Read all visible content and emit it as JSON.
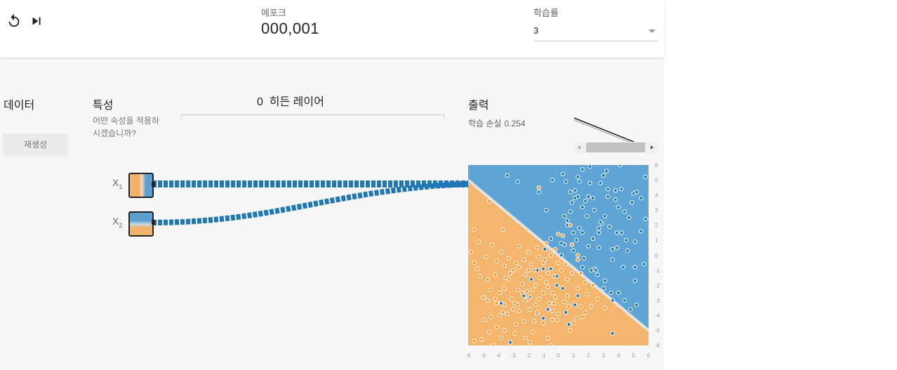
{
  "controls": {
    "reset_icon": "reset-icon",
    "step_icon": "step-forward-icon"
  },
  "epoch": {
    "label": "에포크",
    "value": "000,001"
  },
  "learning_rate": {
    "label": "학습률",
    "value": "3"
  },
  "data_section": {
    "title": "데이터",
    "regenerate_label": "재생성"
  },
  "features_section": {
    "title": "특성",
    "description": "어떤 속성을 적용하시겠습니까?",
    "features": [
      {
        "name": "X",
        "sub": "1"
      },
      {
        "name": "X",
        "sub": "2"
      }
    ]
  },
  "hidden_section": {
    "count": "0",
    "label": "히든 레이어"
  },
  "output_section": {
    "title": "출력",
    "loss_label": "학습 손실",
    "loss_value": "0.254"
  },
  "colors": {
    "blue": "#1f77b4",
    "orange": "#f29b38",
    "blue_region": "#5ea5d5",
    "orange_region": "#f4b56c",
    "background": "#f7f7f7"
  },
  "chart_data": {
    "type": "scatter",
    "x_ticks": [
      "-6",
      "-5",
      "-4",
      "-3",
      "-2",
      "-1",
      "0",
      "1",
      "2",
      "3",
      "4",
      "5",
      "6"
    ],
    "y_ticks": [
      "6",
      "5",
      "4",
      "3",
      "2",
      "1",
      "0",
      "-1",
      "-2",
      "-3",
      "-4",
      "-5",
      "-6"
    ],
    "xlim": [
      -6,
      6
    ],
    "ylim": [
      -6,
      6
    ],
    "decision_boundary": {
      "from": [
        -6,
        5
      ],
      "to": [
        6,
        -5
      ]
    },
    "series": [
      {
        "class": "blue",
        "points": [
          [
            2.9,
            2.1
          ],
          [
            3.0,
            5.3
          ],
          [
            5.2,
            4.2
          ],
          [
            2.8,
            4.8
          ],
          [
            5.5,
            3.8
          ],
          [
            0.3,
            5.4
          ],
          [
            3.8,
            4.3
          ],
          [
            0.6,
            2.3
          ],
          [
            2.1,
            5.9
          ],
          [
            3.3,
            3.9
          ],
          [
            4.5,
            1.0
          ],
          [
            2.8,
            2.2
          ],
          [
            4.9,
            3.5
          ],
          [
            5.8,
            2.4
          ],
          [
            1.3,
            5.2
          ],
          [
            3.3,
            4.4
          ],
          [
            1.8,
            3.6
          ],
          [
            2.7,
            1.5
          ],
          [
            0.9,
            3.5
          ],
          [
            2.3,
            3.8
          ],
          [
            4.7,
            2.5
          ],
          [
            2.7,
            1.8
          ],
          [
            2.1,
            4.8
          ],
          [
            0.4,
            2.6
          ],
          [
            2.0,
            3.9
          ],
          [
            3.1,
            2.6
          ],
          [
            5.1,
            0.9
          ],
          [
            1.3,
            3.9
          ],
          [
            4.2,
            4.4
          ],
          [
            5.0,
            4.1
          ],
          [
            3.9,
            1.5
          ],
          [
            1.6,
            3.2
          ],
          [
            3.6,
            0.4
          ],
          [
            1.4,
            1.8
          ],
          [
            1.1,
            3.8
          ],
          [
            0.5,
            4.9
          ],
          [
            3.2,
            5.6
          ],
          [
            2.7,
            0.5
          ],
          [
            4.0,
            3.2
          ],
          [
            2.3,
            1.1
          ],
          [
            4.4,
            2.9
          ],
          [
            4.6,
            0.3
          ],
          [
            4.2,
            1.5
          ],
          [
            2.4,
            3.0
          ],
          [
            5.1,
            -0.8
          ],
          [
            3.8,
            3.7
          ],
          [
            1.0,
            1.5
          ],
          [
            0.8,
            4.2
          ],
          [
            3.4,
            1.9
          ],
          [
            3.6,
            -0.3
          ],
          [
            2.0,
            0.6
          ],
          [
            0.8,
            2.9
          ],
          [
            1.1,
            4.3
          ],
          [
            1.9,
            2.6
          ],
          [
            3.9,
            0.5
          ],
          [
            1.7,
            -0.2
          ],
          [
            2.4,
            -0.9
          ],
          [
            2.2,
            -1.0
          ],
          [
            3.1,
            -1.7
          ],
          [
            3.5,
            -2.5
          ],
          [
            5.2,
            -3.3
          ],
          [
            4.3,
            -0.8
          ],
          [
            4.8,
            -3.6
          ],
          [
            1.2,
            1.0
          ],
          [
            0.6,
            2.0
          ],
          [
            1.6,
            1.5
          ],
          [
            0.4,
            0.7
          ],
          [
            1.0,
            0.3
          ],
          [
            1.6,
            -0.8
          ],
          [
            2.5,
            -1.0
          ],
          [
            2.6,
            -1.3
          ],
          [
            3.0,
            -2.2
          ],
          [
            3.6,
            -3.0
          ],
          [
            4.0,
            -2.5
          ],
          [
            4.4,
            -3.0
          ],
          [
            5.1,
            -1.7
          ],
          [
            5.7,
            -0.6
          ],
          [
            -0.5,
            -0.9
          ],
          [
            0.2,
            0.0
          ],
          [
            -1.0,
            -0.9
          ],
          [
            -1.4,
            -1.0
          ],
          [
            -1.8,
            -1.6
          ],
          [
            -1.9,
            -2.8
          ],
          [
            -0.1,
            -1.4
          ],
          [
            1.1,
            -3.3
          ],
          [
            1.3,
            -2.7
          ],
          [
            -0.7,
            -3.6
          ],
          [
            0.5,
            -3.8
          ],
          [
            0.7,
            -4.6
          ],
          [
            -2.3,
            -2.7
          ],
          [
            -0.9,
            0.4
          ],
          [
            0.3,
            -2.2
          ],
          [
            -1.0,
            -4.2
          ],
          [
            3.6,
            -5.2
          ],
          [
            -3.2,
            -5.8
          ],
          [
            -3.8,
            -3.2
          ],
          [
            -1.4,
            -3.9
          ],
          [
            -0.1,
            -2.0
          ],
          [
            -0.5,
            1.1
          ],
          [
            5.8,
            5.2
          ],
          [
            4.1,
            6.0
          ],
          [
            1.6,
            5.7
          ],
          [
            1.4,
            4.9
          ],
          [
            5.5,
            1.6
          ],
          [
            0.2,
            0.8
          ],
          [
            -1.3,
            4.2
          ],
          [
            -0.8,
            3.0
          ],
          [
            -0.4,
            5.0
          ],
          [
            -3.4,
            5.3
          ],
          [
            -2.7,
            4.9
          ]
        ]
      },
      {
        "class": "orange",
        "points": [
          [
            -1.3,
            4.5
          ],
          [
            0.8,
            2.0
          ],
          [
            1.3,
            -0.3
          ],
          [
            -0.2,
            0.4
          ],
          [
            1.3,
            -2.2
          ],
          [
            -0.4,
            -2.5
          ],
          [
            -3.7,
            1.7
          ],
          [
            -4.9,
            -4.3
          ],
          [
            -5.6,
            1.7
          ],
          [
            -5.3,
            0.9
          ],
          [
            -4.6,
            3.6
          ],
          [
            -4.1,
            -0.4
          ],
          [
            -4.7,
            -1.6
          ],
          [
            -3.3,
            -1.6
          ],
          [
            -2.2,
            -1.3
          ],
          [
            -1.6,
            -1.0
          ],
          [
            -1.0,
            -0.5
          ],
          [
            -2.7,
            -2.3
          ],
          [
            -2.1,
            -2.4
          ],
          [
            -3.6,
            -2.2
          ],
          [
            -4.7,
            -3.0
          ],
          [
            -4.1,
            -3.2
          ],
          [
            -3.9,
            -4.0
          ],
          [
            -2.9,
            -3.2
          ],
          [
            -2.2,
            -3.0
          ],
          [
            -0.7,
            -2.1
          ],
          [
            -0.2,
            -2.8
          ],
          [
            -0.4,
            -3.7
          ],
          [
            -1.6,
            -4.4
          ],
          [
            -1.7,
            -5.1
          ],
          [
            -2.2,
            -5.5
          ],
          [
            -4.3,
            -6.0
          ],
          [
            -5.1,
            -5.6
          ],
          [
            -3.6,
            -5.0
          ],
          [
            -2.3,
            -4.4
          ],
          [
            -0.7,
            -5.5
          ],
          [
            -0.4,
            -4.3
          ],
          [
            1.0,
            -4.5
          ],
          [
            0.8,
            -5.0
          ],
          [
            2.2,
            -3.4
          ],
          [
            2.6,
            -2.9
          ],
          [
            3.1,
            -3.5
          ],
          [
            1.6,
            -4.1
          ],
          [
            0.4,
            -3.1
          ],
          [
            -0.3,
            -3.2
          ],
          [
            -1.7,
            -2.3
          ],
          [
            -2.0,
            -1.0
          ],
          [
            -2.6,
            -0.8
          ],
          [
            -1.4,
            0.5
          ],
          [
            -0.5,
            0.0
          ],
          [
            0.0,
            -0.5
          ],
          [
            -0.8,
            0.8
          ],
          [
            -0.9,
            -0.3
          ],
          [
            -1.3,
            -0.1
          ],
          [
            -2.0,
            0.2
          ],
          [
            -2.3,
            -0.3
          ],
          [
            -2.8,
            -0.5
          ],
          [
            -3.2,
            -1.2
          ],
          [
            -3.5,
            -1.5
          ],
          [
            -3.9,
            -2.5
          ],
          [
            -4.2,
            -2.9
          ],
          [
            -3.6,
            -3.3
          ],
          [
            -3.0,
            -3.6
          ],
          [
            -2.6,
            -3.7
          ],
          [
            -1.9,
            -3.6
          ],
          [
            -1.3,
            -2.9
          ],
          [
            -1.0,
            -2.5
          ],
          [
            -0.8,
            -1.8
          ],
          [
            0.2,
            -1.0
          ],
          [
            0.6,
            -1.6
          ],
          [
            1.5,
            -1.2
          ],
          [
            2.3,
            -2.0
          ],
          [
            1.8,
            -1.8
          ],
          [
            0.9,
            -1.2
          ],
          [
            1.5,
            -3.4
          ],
          [
            1.8,
            -3.8
          ],
          [
            -0.1,
            -4.3
          ],
          [
            -1.0,
            -4.5
          ],
          [
            -1.5,
            -3.3
          ],
          [
            -2.4,
            -2.5
          ],
          [
            -3.1,
            -2.9
          ],
          [
            -3.4,
            -3.9
          ],
          [
            -2.8,
            -4.6
          ],
          [
            -4.1,
            -4.8
          ],
          [
            -4.5,
            -4.1
          ],
          [
            -5.0,
            -2.8
          ],
          [
            -5.2,
            -1.4
          ],
          [
            -5.6,
            -0.5
          ],
          [
            -5.8,
            0.2
          ],
          [
            -5.4,
            -0.9
          ],
          [
            -4.8,
            -0.1
          ],
          [
            -4.4,
            0.7
          ],
          [
            -3.8,
            0.2
          ],
          [
            -3.3,
            -0.2
          ],
          [
            -2.6,
            0.6
          ],
          [
            -1.8,
            -0.6
          ],
          [
            -1.2,
            -1.5
          ],
          [
            -0.7,
            -1.2
          ],
          [
            0.3,
            1.3
          ],
          [
            0.0,
            1.4
          ],
          [
            0.9,
            0.7
          ],
          [
            1.3,
            0.0
          ],
          [
            0.5,
            -0.6
          ],
          [
            1.9,
            -2.6
          ],
          [
            0.6,
            -2.7
          ],
          [
            -0.3,
            -1.4
          ],
          [
            -1.5,
            -2.0
          ],
          [
            -2.4,
            -1.9
          ],
          [
            -3.0,
            -1.0
          ],
          [
            -3.6,
            -0.7
          ],
          [
            -4.2,
            -1.3
          ],
          [
            -4.5,
            -2.3
          ],
          [
            -3.7,
            -3.8
          ],
          [
            -2.7,
            -3.3
          ],
          [
            -2.0,
            -2.9
          ],
          [
            -1.4,
            -3.8
          ],
          [
            -0.6,
            -3.2
          ],
          [
            0.0,
            -3.9
          ],
          [
            0.7,
            -3.4
          ],
          [
            1.2,
            -4.2
          ],
          [
            -0.5,
            -6.0
          ],
          [
            -1.9,
            -5.8
          ],
          [
            -2.9,
            -5.2
          ],
          [
            -3.8,
            -5.5
          ],
          [
            -4.6,
            -5.1
          ],
          [
            -5.6,
            -5.7
          ]
        ]
      }
    ]
  }
}
